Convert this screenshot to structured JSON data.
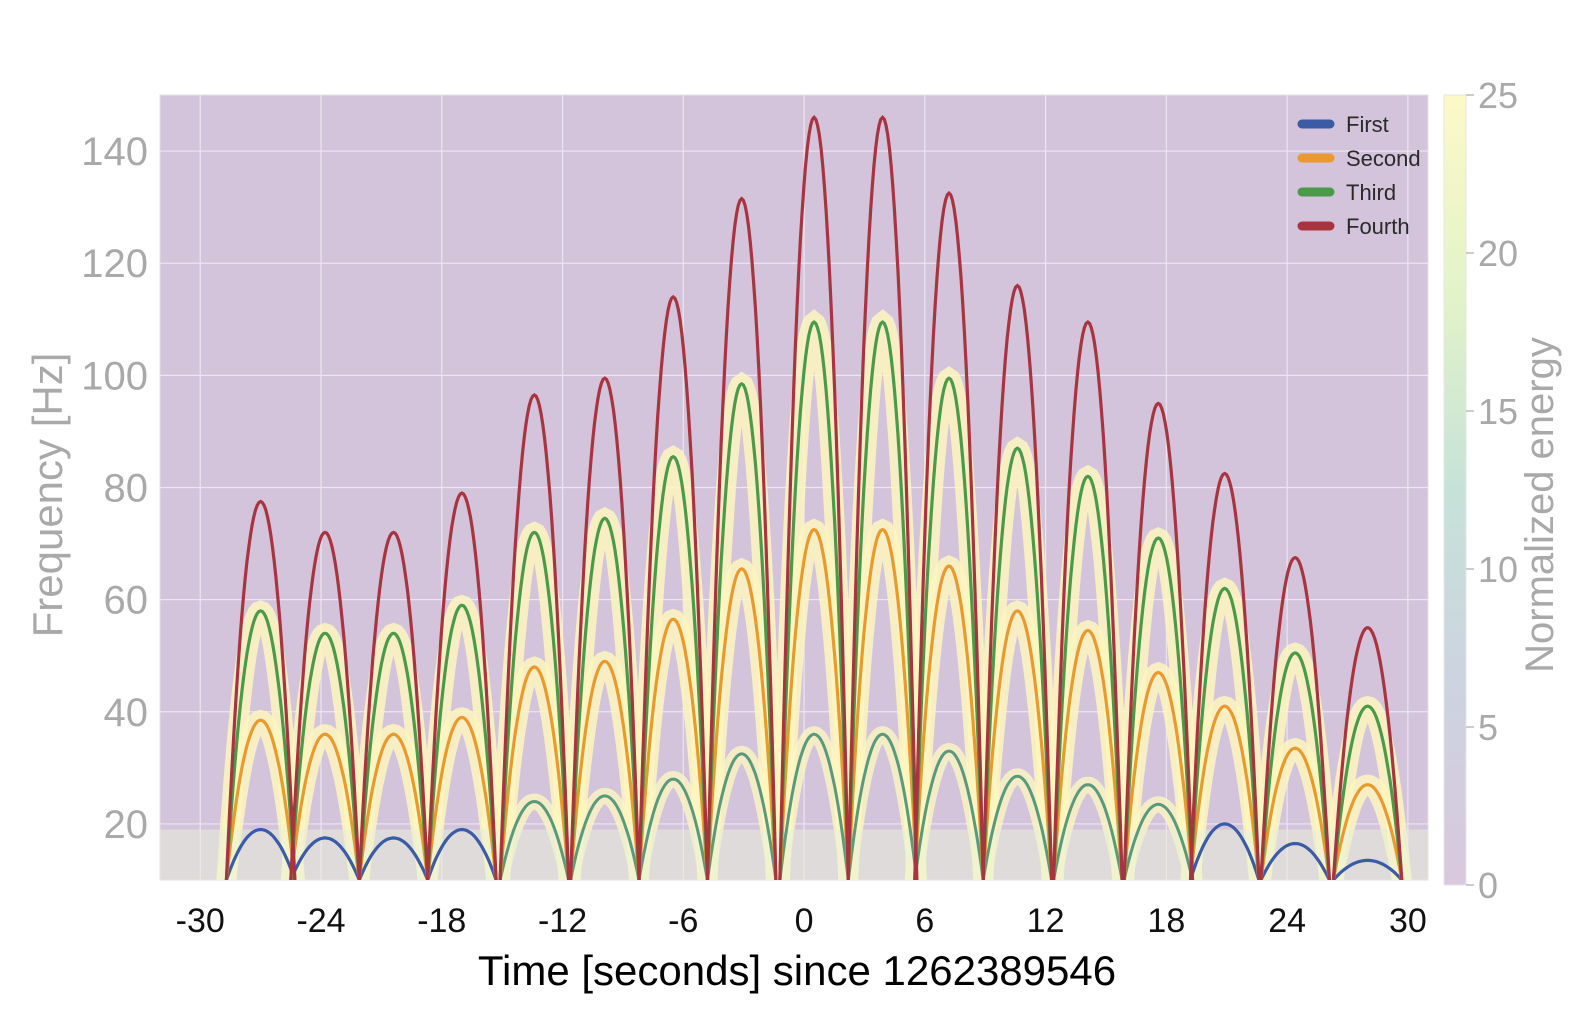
{
  "chart_data": {
    "type": "line",
    "title": "",
    "xlabel": "Time [seconds] since 1262389546",
    "ylabel": "Frequency [Hz]",
    "colorbar_label": "Normalized energy",
    "xlim": [
      -32,
      31
    ],
    "ylim": [
      10,
      150
    ],
    "x_ticks": [
      -30,
      -24,
      -18,
      -12,
      -6,
      0,
      6,
      12,
      18,
      24,
      30
    ],
    "y_ticks": [
      20,
      40,
      60,
      80,
      100,
      120,
      140
    ],
    "colorbar_range": [
      0,
      25
    ],
    "colorbar_ticks": [
      0,
      5,
      10,
      15,
      20,
      25
    ],
    "grid": true,
    "legend_position": "top-right",
    "background": "spectrogram (q-transform), purple low energy to yellow high energy",
    "arch_centers": [
      -27,
      -23.8,
      -20.4,
      -17,
      -13.4,
      -9.9,
      -6.5,
      -3.1,
      0.5,
      3.9,
      7.2,
      10.6,
      14.1,
      17.6,
      20.9,
      24.4,
      28
    ],
    "arch_half_width": 1.7,
    "series": [
      {
        "name": "First",
        "color": "#3b5ba5",
        "values": [
          19,
          17.5,
          17.5,
          19,
          0,
          0,
          0,
          0,
          0,
          0,
          0,
          0,
          0,
          0,
          20,
          16.5,
          13.5
        ]
      },
      {
        "name": "Second",
        "color": "#e89a2e",
        "values": [
          38.5,
          36,
          36,
          39,
          48,
          49,
          56.5,
          65.5,
          72.5,
          72.5,
          66,
          58,
          54.5,
          47,
          41,
          33.5,
          27
        ]
      },
      {
        "name": "Third",
        "color": "#4a9a48",
        "values": [
          58,
          54,
          54,
          59,
          72,
          74.5,
          85.5,
          98.5,
          109.5,
          109.5,
          99.5,
          87,
          82,
          71,
          62,
          50.5,
          41
        ]
      },
      {
        "name": "Fourth",
        "color": "#a8343f",
        "values": [
          77.5,
          72,
          72,
          79,
          96.5,
          99.5,
          114,
          131.5,
          146,
          146,
          132.5,
          116,
          109.5,
          95,
          82.5,
          67.5,
          55
        ]
      }
    ],
    "secondary_arches": {
      "color": "#5a9a7a",
      "values": [
        0,
        0,
        0,
        0,
        24,
        25,
        28,
        32.5,
        36,
        36,
        33,
        28.5,
        27,
        23.5,
        0,
        0,
        0
      ]
    }
  }
}
